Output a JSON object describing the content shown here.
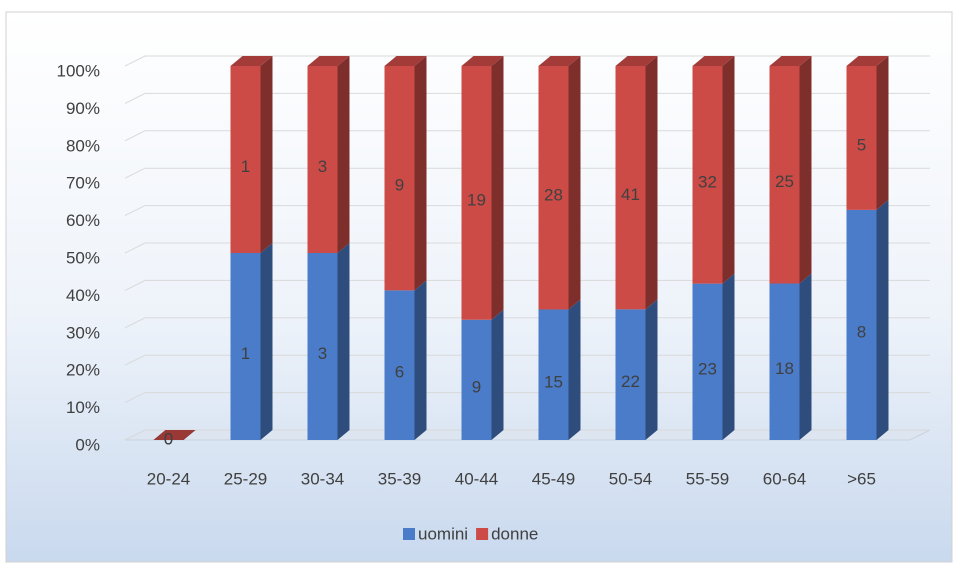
{
  "chart_data": {
    "type": "bar",
    "stacking": "percent",
    "categories": [
      "20-24",
      "25-29",
      "30-34",
      "35-39",
      "40-44",
      "45-49",
      "50-54",
      "55-59",
      "60-64",
      ">65"
    ],
    "series": [
      {
        "name": "uomini",
        "color": "#4a7cc9",
        "values": [
          0,
          1,
          3,
          6,
          9,
          15,
          22,
          23,
          18,
          8
        ]
      },
      {
        "name": "donne",
        "color": "#cc4b47",
        "values": [
          0,
          1,
          3,
          9,
          19,
          28,
          41,
          32,
          25,
          5
        ]
      }
    ],
    "ylim": [
      0,
      100
    ],
    "yticks": [
      {
        "value": 0,
        "label": "0%"
      },
      {
        "value": 10,
        "label": "10%"
      },
      {
        "value": 20,
        "label": "20%"
      },
      {
        "value": 30,
        "label": "30%"
      },
      {
        "value": 40,
        "label": "40%"
      },
      {
        "value": 50,
        "label": "50%"
      },
      {
        "value": 60,
        "label": "60%"
      },
      {
        "value": 70,
        "label": "70%"
      },
      {
        "value": 80,
        "label": "80%"
      },
      {
        "value": 90,
        "label": "90%"
      },
      {
        "value": 100,
        "label": "100%"
      }
    ],
    "grid": true,
    "legend": "bottom"
  }
}
